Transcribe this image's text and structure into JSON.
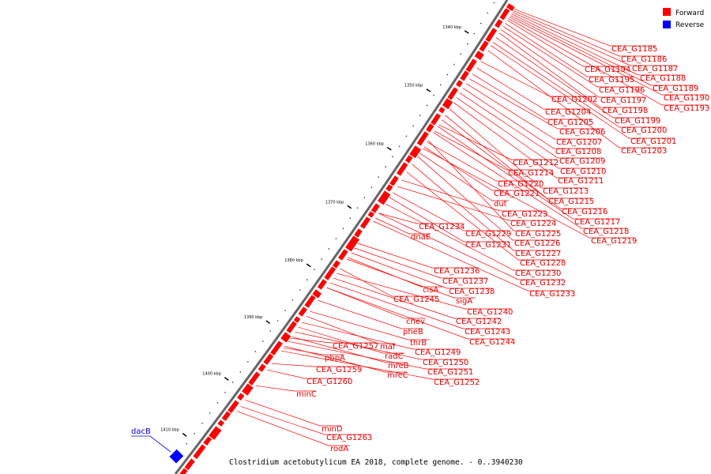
{
  "caption": "Clostridium acetobutylicum EA 2018, complete genome. - 0..3940230",
  "legend": [
    {
      "name": "Forward",
      "color": "#ff0000"
    },
    {
      "name": "Reverse",
      "color": "#0000ff"
    }
  ],
  "colors": {
    "forward": "#ff0000",
    "reverse": "#0000ff",
    "backbone": "#666666"
  },
  "ticks": [
    "1340 kbp",
    "1350 kbp",
    "1360 kbp",
    "1370 kbp",
    "1380 kbp",
    "1390 kbp",
    "1400 kbp",
    "1410 kbp"
  ],
  "forward_labels": [
    "CEA_G1185",
    "CEA_G1186",
    "CEA_G1194",
    "CEA_G1187",
    "CEA_G1195",
    "CEA_G1188",
    "CEA_G1196",
    "CEA_G1189",
    "CEA_G1202",
    "CEA_G1197",
    "CEA_G1190",
    "CEA_G1204",
    "CEA_G1198",
    "CEA_G1193",
    "CEA_G1205",
    "CEA_G1199",
    "CEA_G1206",
    "CEA_G1200",
    "CEA_G1207",
    "CEA_G1201",
    "CEA_G1208",
    "CEA_G1203",
    "CEA_G1209",
    "CEA_G1212",
    "CEA_G1210",
    "CEA_G1214",
    "CEA_G1211",
    "CEA_G1220",
    "CEA_G1213",
    "CEA_G1221",
    "CEA_G1215",
    "dut",
    "CEA_G1216",
    "CEA_G1223",
    "CEA_G1217",
    "CEA_G1224",
    "CEA_G1218",
    "CEA_G1234",
    "CEA_G1225",
    "CEA_G1229",
    "CEA_G1219",
    "dnaE",
    "CEA_G1226",
    "CEA_G1231",
    "CEA_G1227",
    "CEA_G1228",
    "CEA_G1236",
    "CEA_G1230",
    "CEA_G1237",
    "CEA_G1232",
    "cisA",
    "CEA_G1238",
    "CEA_G1233",
    "CEA_G1245",
    "sigA",
    "CEA_G1240",
    "chev",
    "CEA_G1242",
    "pheB",
    "CEA_G1243",
    "thrB",
    "CEA_G1244",
    "CEA_G1257",
    "maf",
    "CEA_G1249",
    "pbpA",
    "radC",
    "CEA_G1250",
    "mreB",
    "CEA_G1259",
    "CEA_G1251",
    "mreC",
    "CEA_G1260",
    "CEA_G1252",
    "minC",
    "minD",
    "CEA_G1263",
    "rodA"
  ],
  "reverse_labels": [
    "dacB"
  ]
}
